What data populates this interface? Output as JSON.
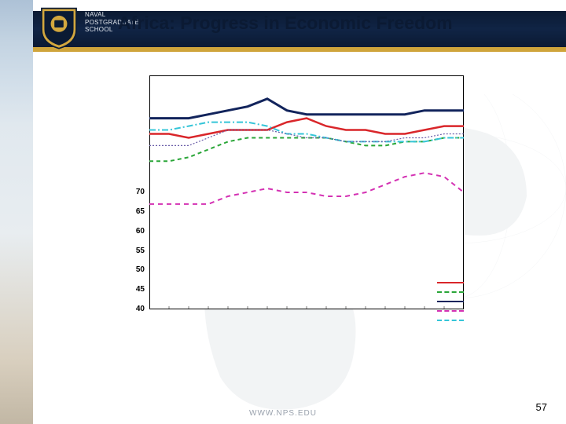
{
  "header": {
    "title": "Africa: Progress in Economic Freedom",
    "institution_line1": "NAVAL",
    "institution_line2": "POSTGRADUATE",
    "institution_line3": "SCHOOL"
  },
  "footer": {
    "url": "WWW.NPS.EDU",
    "page_number": "57"
  },
  "colors": {
    "header_bg_top": "#0b1a33",
    "header_bg_mid": "#102445",
    "accent_gold": "#cfa43b",
    "plot_border": "#000000",
    "background": "#ffffff",
    "logo_gold": "#d3a73e",
    "logo_navy": "#0b1a33"
  },
  "chart": {
    "type": "line",
    "ylim": [
      40,
      100
    ],
    "ytick_step": 5,
    "yticks": [
      40,
      45,
      50,
      55,
      60,
      65,
      70,
      75,
      80,
      85,
      90,
      95,
      100
    ],
    "ytick_labels_visible": [
      "70",
      "65",
      "60",
      "55",
      "50",
      "45",
      "40"
    ],
    "label_fontsize": 10,
    "label_fontweight": 700,
    "plot_bg": "#ffffff",
    "border_color": "#000000",
    "border_width": 1,
    "x_points": 17,
    "series": [
      {
        "id": "red",
        "color": "#d9262a",
        "width": 2.5,
        "dash": "",
        "values": [
          85,
          85,
          84,
          85,
          86,
          86,
          86,
          88,
          89,
          87,
          86,
          86,
          85,
          85,
          86,
          87,
          87
        ]
      },
      {
        "id": "green",
        "color": "#2aa638",
        "width": 2,
        "dash": "5,4",
        "values": [
          78,
          78,
          79,
          81,
          83,
          84,
          84,
          84,
          84,
          84,
          83,
          82,
          82,
          83,
          83,
          84,
          84
        ]
      },
      {
        "id": "navy",
        "color": "#12245c",
        "width": 3,
        "dash": "",
        "values": [
          89,
          89,
          89,
          90,
          91,
          92,
          94,
          91,
          90,
          90,
          90,
          90,
          90,
          90,
          91,
          91,
          91
        ]
      },
      {
        "id": "magenta",
        "color": "#d431b3",
        "width": 2,
        "dash": "6,5",
        "values": [
          67,
          67,
          67,
          67,
          69,
          70,
          71,
          70,
          70,
          69,
          69,
          70,
          72,
          74,
          75,
          74,
          70
        ]
      },
      {
        "id": "cyan",
        "color": "#35c5d8",
        "width": 2,
        "dash": "8,3,2,3",
        "values": [
          86,
          86,
          87,
          88,
          88,
          88,
          87,
          85,
          85,
          84,
          83,
          83,
          83,
          83,
          83,
          84,
          84
        ]
      },
      {
        "id": "purple",
        "color": "#6a5da8",
        "width": 1.2,
        "dash": "2,2",
        "values": [
          82,
          82,
          82,
          84,
          86,
          86,
          86,
          85,
          84,
          84,
          83,
          83,
          83,
          84,
          84,
          85,
          85
        ]
      }
    ],
    "legend": {
      "position": "bottom-right",
      "entries": [
        {
          "series": "red",
          "color": "#d9262a",
          "dash": ""
        },
        {
          "series": "green",
          "color": "#2aa638",
          "dash": "5,4"
        },
        {
          "series": "navy",
          "color": "#12245c",
          "dash": ""
        },
        {
          "series": "magenta",
          "color": "#d431b3",
          "dash": "6,5"
        },
        {
          "series": "cyan",
          "color": "#35c5d8",
          "dash": "8,3,2,3"
        }
      ]
    }
  }
}
